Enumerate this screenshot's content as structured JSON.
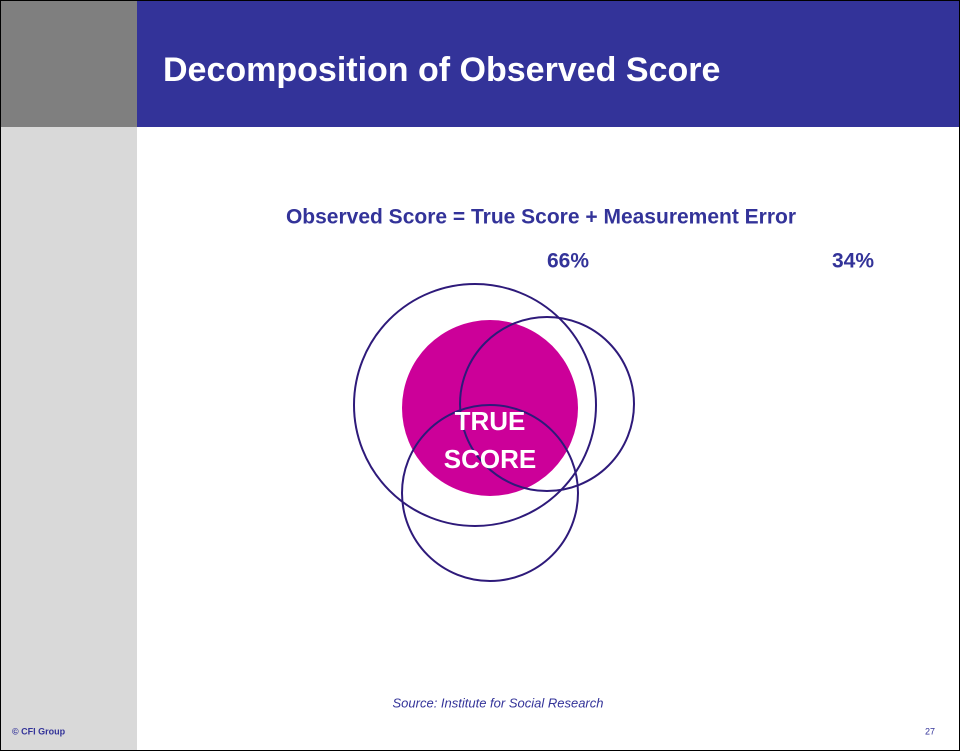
{
  "header": {
    "title": "Decomposition of Observed Score"
  },
  "equation": {
    "text": "Observed Score = True Score + Measurement Error",
    "true_share": "66%",
    "error_share": "34%"
  },
  "diagram": {
    "label_lines": [
      "TRUE",
      "SCORE"
    ]
  },
  "source": "Source: Institute for Social Research",
  "footer": {
    "copyright": "© CFI Group",
    "page": "27"
  }
}
